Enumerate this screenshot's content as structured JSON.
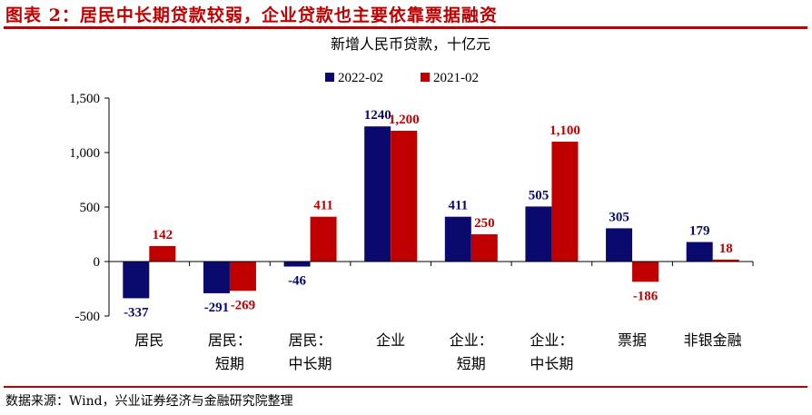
{
  "header": {
    "title": "图表 2：居民中长期贷款较弱，企业贷款也主要依靠票据融资"
  },
  "footer": {
    "source": "数据来源：Wind，兴业证券经济与金融研究院整理"
  },
  "chart_data": {
    "type": "bar",
    "title": "新增人民币贷款，十亿元",
    "categories": [
      [
        "居民"
      ],
      [
        "居民：",
        "短期"
      ],
      [
        "居民：",
        "中长期"
      ],
      [
        "企业"
      ],
      [
        "企业：",
        "短期"
      ],
      [
        "企业：",
        "中长期"
      ],
      [
        "票据"
      ],
      [
        "非银金融"
      ]
    ],
    "series": [
      {
        "name": "2022-02",
        "color": "#0a0a6e",
        "values": [
          -337,
          -291,
          -46,
          1240,
          411,
          505,
          305,
          179
        ],
        "labels": [
          "-337",
          "-291",
          "-46",
          "1240",
          "411",
          "505",
          "305",
          "179"
        ]
      },
      {
        "name": "2021-02",
        "color": "#c00000",
        "values": [
          142,
          -269,
          411,
          1200,
          250,
          1100,
          -186,
          18
        ],
        "labels": [
          "142",
          "-269",
          "411",
          "1,200",
          "250",
          "1,100",
          "-186",
          "18"
        ]
      }
    ],
    "ylim": [
      -500,
      1500
    ],
    "yticks": [
      "-500",
      "0",
      "500",
      "1,000",
      "1,500"
    ],
    "ytick_values": [
      -500,
      0,
      500,
      1000,
      1500
    ],
    "legend": "top-center",
    "grid": false
  }
}
